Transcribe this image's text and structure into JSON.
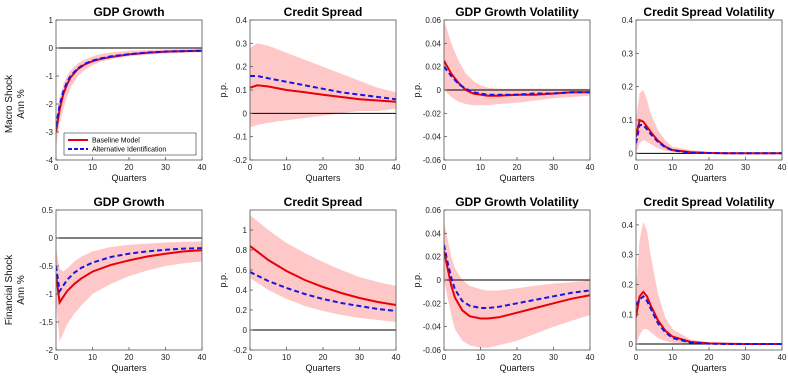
{
  "figure": {
    "row_labels": [
      [
        "Macro Shock",
        "Ann %"
      ],
      [
        "Financial Shock",
        "Ann %"
      ]
    ],
    "legend": {
      "entries": [
        {
          "label": "Baseline Model",
          "color": "#e8000b",
          "dash": false
        },
        {
          "label": "Alternative Identification",
          "color": "#1515e6",
          "dash": true
        }
      ]
    },
    "colors": {
      "baseline": "#e8000b",
      "alternative": "#1515e6",
      "band": "#ffc8c8",
      "zero": "#000000"
    }
  },
  "chart_data": [
    {
      "type": "line",
      "title": "GDP Growth",
      "xlabel": "Quarters",
      "ylabel": "",
      "xlim": [
        0,
        40
      ],
      "ylim": [
        -4,
        1
      ],
      "xticks": [
        0,
        10,
        20,
        30,
        40
      ],
      "xtick_labels": [
        "0",
        "10",
        "20",
        "30",
        "40"
      ],
      "yticks": [
        -4,
        -3,
        -2,
        -1,
        0,
        1
      ],
      "ytick_labels": [
        "-4",
        "-3",
        "-2",
        "-1",
        "0",
        "1"
      ],
      "grid": false,
      "legend_position": "bottom-left",
      "x": [
        0,
        1,
        2,
        3,
        4,
        6,
        8,
        10,
        12,
        15,
        20,
        25,
        30,
        35,
        40
      ],
      "band": {
        "upper": [
          -2.6,
          -1.8,
          -1.3,
          -1.0,
          -0.8,
          -0.55,
          -0.4,
          -0.3,
          -0.22,
          -0.16,
          -0.1,
          -0.07,
          -0.05,
          -0.04,
          -0.03
        ],
        "lower": [
          -3.5,
          -2.7,
          -2.2,
          -1.75,
          -1.4,
          -1.0,
          -0.78,
          -0.62,
          -0.5,
          -0.4,
          -0.3,
          -0.24,
          -0.2,
          -0.17,
          -0.15
        ]
      },
      "series": [
        {
          "name": "Baseline Model",
          "values": [
            -3.0,
            -2.2,
            -1.65,
            -1.3,
            -1.05,
            -0.75,
            -0.58,
            -0.47,
            -0.4,
            -0.32,
            -0.23,
            -0.17,
            -0.13,
            -0.11,
            -0.1
          ]
        },
        {
          "name": "Alternative Identification",
          "values": [
            -2.8,
            -2.05,
            -1.55,
            -1.22,
            -1.0,
            -0.72,
            -0.56,
            -0.45,
            -0.38,
            -0.3,
            -0.22,
            -0.16,
            -0.13,
            -0.11,
            -0.1
          ]
        }
      ]
    },
    {
      "type": "line",
      "title": "Credit Spread",
      "xlabel": "Quarters",
      "ylabel": "p.p.",
      "xlim": [
        0,
        40
      ],
      "ylim": [
        -0.2,
        0.4
      ],
      "xticks": [
        0,
        10,
        20,
        30,
        40
      ],
      "xtick_labels": [
        "0",
        "10",
        "20",
        "30",
        "40"
      ],
      "yticks": [
        -0.2,
        -0.1,
        0,
        0.1,
        0.2,
        0.3,
        0.4
      ],
      "ytick_labels": [
        "-0.2",
        "-0.1",
        "0",
        "0.1",
        "0.2",
        "0.3",
        "0.4"
      ],
      "grid": false,
      "x": [
        0,
        2,
        5,
        10,
        15,
        20,
        25,
        30,
        35,
        40
      ],
      "band": {
        "upper": [
          0.28,
          0.3,
          0.29,
          0.26,
          0.23,
          0.2,
          0.17,
          0.14,
          0.11,
          0.09
        ],
        "lower": [
          -0.06,
          -0.05,
          -0.04,
          -0.03,
          -0.02,
          -0.01,
          0.0,
          0.01,
          0.01,
          0.02
        ]
      },
      "series": [
        {
          "name": "Baseline Model",
          "values": [
            0.11,
            0.12,
            0.115,
            0.1,
            0.09,
            0.08,
            0.07,
            0.06,
            0.055,
            0.05
          ]
        },
        {
          "name": "Alternative Identification",
          "values": [
            0.16,
            0.16,
            0.15,
            0.135,
            0.12,
            0.105,
            0.09,
            0.08,
            0.07,
            0.06
          ]
        }
      ]
    },
    {
      "type": "line",
      "title": "GDP Growth Volatility",
      "xlabel": "Quarters",
      "ylabel": "p.p.",
      "xlim": [
        0,
        40
      ],
      "ylim": [
        -0.06,
        0.06
      ],
      "xticks": [
        0,
        10,
        20,
        30,
        40
      ],
      "xtick_labels": [
        "0",
        "10",
        "20",
        "30",
        "40"
      ],
      "yticks": [
        -0.06,
        -0.04,
        -0.02,
        0,
        0.02,
        0.04,
        0.06
      ],
      "ytick_labels": [
        "-0.06",
        "-0.04",
        "-0.02",
        "0",
        "0.02",
        "0.04",
        "0.06"
      ],
      "grid": false,
      "x": [
        0,
        2,
        4,
        6,
        8,
        10,
        12,
        15,
        20,
        25,
        30,
        35,
        40
      ],
      "band": {
        "upper": [
          0.06,
          0.04,
          0.025,
          0.014,
          0.008,
          0.004,
          0.002,
          0.001,
          0.001,
          0.001,
          0.001,
          0.001,
          0.001
        ],
        "lower": [
          0.0,
          -0.006,
          -0.01,
          -0.012,
          -0.013,
          -0.013,
          -0.013,
          -0.012,
          -0.011,
          -0.009,
          -0.007,
          -0.006,
          -0.005
        ]
      },
      "series": [
        {
          "name": "Baseline Model",
          "values": [
            0.025,
            0.014,
            0.006,
            0.0,
            -0.003,
            -0.004,
            -0.005,
            -0.005,
            -0.004,
            -0.004,
            -0.003,
            -0.002,
            -0.002
          ]
        },
        {
          "name": "Alternative Identification",
          "values": [
            0.02,
            0.012,
            0.005,
            0.001,
            -0.002,
            -0.003,
            -0.004,
            -0.004,
            -0.004,
            -0.003,
            -0.003,
            -0.002,
            -0.002
          ]
        }
      ]
    },
    {
      "type": "line",
      "title": "Credit Spread Volatility",
      "xlabel": "Quarters",
      "ylabel": "",
      "xlim": [
        0,
        40
      ],
      "ylim": [
        -0.02,
        0.4
      ],
      "xticks": [
        0,
        10,
        20,
        30,
        40
      ],
      "xtick_labels": [
        "0",
        "10",
        "20",
        "30",
        "40"
      ],
      "yticks": [
        0,
        0.1,
        0.2,
        0.3,
        0.4
      ],
      "ytick_labels": [
        "0",
        "0.1",
        "0.2",
        "0.3",
        "0.4"
      ],
      "grid": false,
      "x": [
        0,
        1,
        2,
        3,
        4,
        6,
        8,
        10,
        15,
        20,
        25,
        30,
        35,
        40
      ],
      "band": {
        "upper": [
          0.1,
          0.18,
          0.19,
          0.16,
          0.12,
          0.07,
          0.04,
          0.02,
          0.01,
          0.005,
          0.003,
          0.002,
          0.002,
          0.002
        ],
        "lower": [
          0.0,
          0.03,
          0.04,
          0.035,
          0.028,
          0.015,
          0.008,
          0.004,
          0.001,
          0.0,
          0.0,
          0.0,
          0.0,
          0.0
        ]
      },
      "series": [
        {
          "name": "Baseline Model",
          "values": [
            0.05,
            0.1,
            0.095,
            0.08,
            0.065,
            0.038,
            0.02,
            0.01,
            0.003,
            0.001,
            0.0,
            0.0,
            0.0,
            0.0
          ]
        },
        {
          "name": "Alternative Identification",
          "values": [
            0.03,
            0.085,
            0.085,
            0.072,
            0.058,
            0.035,
            0.018,
            0.009,
            0.002,
            0.001,
            0.0,
            0.0,
            0.0,
            0.0
          ]
        }
      ]
    },
    {
      "type": "line",
      "title": "GDP Growth",
      "xlabel": "Quarters",
      "ylabel": "",
      "xlim": [
        0,
        40
      ],
      "ylim": [
        -2,
        0.5
      ],
      "xticks": [
        0,
        10,
        20,
        30,
        40
      ],
      "xtick_labels": [
        "0",
        "10",
        "20",
        "30",
        "40"
      ],
      "yticks": [
        -2,
        -1.5,
        -1,
        -0.5,
        0,
        0.5
      ],
      "ytick_labels": [
        "-2",
        "-1.5",
        "-1",
        "-0.5",
        "0",
        "0.5"
      ],
      "grid": false,
      "x": [
        0,
        1,
        2,
        3,
        5,
        7,
        10,
        15,
        20,
        25,
        30,
        35,
        40
      ],
      "band": {
        "upper": [
          -0.2,
          -0.55,
          -0.6,
          -0.55,
          -0.42,
          -0.33,
          -0.24,
          -0.16,
          -0.12,
          -0.1,
          -0.08,
          -0.07,
          -0.06
        ],
        "lower": [
          -1.1,
          -1.85,
          -1.7,
          -1.55,
          -1.35,
          -1.2,
          -1.0,
          -0.82,
          -0.68,
          -0.58,
          -0.5,
          -0.45,
          -0.42
        ]
      },
      "series": [
        {
          "name": "Baseline Model",
          "values": [
            -0.65,
            -1.15,
            -1.05,
            -0.95,
            -0.82,
            -0.72,
            -0.6,
            -0.48,
            -0.4,
            -0.33,
            -0.28,
            -0.24,
            -0.22
          ]
        },
        {
          "name": "Alternative Identification",
          "values": [
            -0.5,
            -0.95,
            -0.85,
            -0.75,
            -0.62,
            -0.53,
            -0.44,
            -0.34,
            -0.28,
            -0.24,
            -0.21,
            -0.19,
            -0.18
          ]
        }
      ]
    },
    {
      "type": "line",
      "title": "Credit Spread",
      "xlabel": "Quarters",
      "ylabel": "p.p.",
      "xlim": [
        0,
        40
      ],
      "ylim": [
        -0.2,
        1.2
      ],
      "xticks": [
        0,
        10,
        20,
        30,
        40
      ],
      "xtick_labels": [
        "0",
        "10",
        "20",
        "30",
        "40"
      ],
      "yticks": [
        -0.2,
        0,
        0.2,
        0.4,
        0.6,
        0.8,
        1
      ],
      "ytick_labels": [
        "-0.2",
        "0",
        "0.2",
        "0.4",
        "0.6",
        "0.8",
        "1"
      ],
      "grid": false,
      "x": [
        0,
        5,
        10,
        15,
        20,
        25,
        30,
        35,
        40
      ],
      "band": {
        "upper": [
          1.15,
          1.0,
          0.87,
          0.77,
          0.68,
          0.6,
          0.53,
          0.48,
          0.44
        ],
        "lower": [
          0.52,
          0.4,
          0.31,
          0.24,
          0.19,
          0.15,
          0.12,
          0.1,
          0.08
        ]
      },
      "series": [
        {
          "name": "Baseline Model",
          "values": [
            0.84,
            0.7,
            0.59,
            0.5,
            0.43,
            0.37,
            0.32,
            0.28,
            0.25
          ]
        },
        {
          "name": "Alternative Identification",
          "values": [
            0.58,
            0.49,
            0.42,
            0.36,
            0.31,
            0.27,
            0.24,
            0.21,
            0.19
          ]
        }
      ]
    },
    {
      "type": "line",
      "title": "GDP Growth Volatility",
      "xlabel": "Quarters",
      "ylabel": "p.p.",
      "xlim": [
        0,
        40
      ],
      "ylim": [
        -0.06,
        0.06
      ],
      "xticks": [
        0,
        10,
        20,
        30,
        40
      ],
      "xtick_labels": [
        "0",
        "10",
        "20",
        "30",
        "40"
      ],
      "yticks": [
        -0.06,
        -0.04,
        -0.02,
        0,
        0.02,
        0.04,
        0.06
      ],
      "ytick_labels": [
        "-0.06",
        "-0.04",
        "-0.02",
        "0",
        "0.02",
        "0.04",
        "0.06"
      ],
      "grid": false,
      "x": [
        0,
        1,
        2,
        3,
        5,
        7,
        10,
        12,
        15,
        20,
        25,
        30,
        35,
        40
      ],
      "band": {
        "upper": [
          0.05,
          0.035,
          0.02,
          0.01,
          0.0,
          -0.005,
          -0.008,
          -0.009,
          -0.009,
          -0.007,
          -0.005,
          -0.003,
          -0.002,
          0.0
        ],
        "lower": [
          0.0,
          -0.015,
          -0.03,
          -0.042,
          -0.052,
          -0.056,
          -0.058,
          -0.058,
          -0.056,
          -0.052,
          -0.046,
          -0.04,
          -0.035,
          -0.03
        ]
      },
      "series": [
        {
          "name": "Baseline Model",
          "values": [
            0.025,
            0.01,
            -0.005,
            -0.015,
            -0.026,
            -0.031,
            -0.033,
            -0.033,
            -0.032,
            -0.028,
            -0.024,
            -0.02,
            -0.016,
            -0.013
          ]
        },
        {
          "name": "Alternative Identification",
          "values": [
            0.03,
            0.015,
            0.002,
            -0.008,
            -0.018,
            -0.022,
            -0.024,
            -0.024,
            -0.023,
            -0.02,
            -0.017,
            -0.014,
            -0.011,
            -0.009
          ]
        }
      ]
    },
    {
      "type": "line",
      "title": "Credit Spread Volatility",
      "xlabel": "Quarters",
      "ylabel": "",
      "xlim": [
        0,
        40
      ],
      "ylim": [
        -0.02,
        0.45
      ],
      "xticks": [
        0,
        10,
        20,
        30,
        40
      ],
      "xtick_labels": [
        "0",
        "10",
        "20",
        "30",
        "40"
      ],
      "yticks": [
        0,
        0.1,
        0.2,
        0.3,
        0.4
      ],
      "ytick_labels": [
        "0",
        "0.1",
        "0.2",
        "0.3",
        "0.4"
      ],
      "grid": false,
      "x": [
        0,
        1,
        2,
        3,
        4,
        6,
        8,
        10,
        15,
        20,
        25,
        30,
        35,
        40
      ],
      "band": {
        "upper": [
          0.18,
          0.35,
          0.41,
          0.38,
          0.3,
          0.17,
          0.09,
          0.05,
          0.015,
          0.006,
          0.003,
          0.002,
          0.002,
          0.002
        ],
        "lower": [
          0.0,
          0.03,
          0.05,
          0.05,
          0.04,
          0.02,
          0.01,
          0.005,
          0.001,
          0.0,
          0.0,
          0.0,
          0.0,
          0.0
        ]
      },
      "series": [
        {
          "name": "Baseline Model",
          "values": [
            0.09,
            0.16,
            0.175,
            0.16,
            0.13,
            0.08,
            0.045,
            0.025,
            0.007,
            0.002,
            0.001,
            0.0,
            0.0,
            0.0
          ]
        },
        {
          "name": "Alternative Identification",
          "values": [
            0.13,
            0.15,
            0.16,
            0.145,
            0.12,
            0.07,
            0.04,
            0.02,
            0.005,
            0.001,
            0.0,
            0.0,
            0.0,
            0.0
          ]
        }
      ]
    }
  ]
}
